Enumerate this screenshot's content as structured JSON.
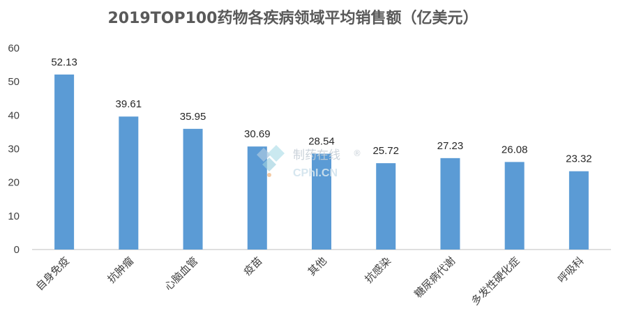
{
  "chart_data": {
    "type": "bar",
    "title": "2019TOP100药物各疾病领域平均销售额（亿美元）",
    "categories": [
      "自身免疫",
      "抗肿瘤",
      "心脑血管",
      "疫苗",
      "其他",
      "抗感染",
      "糖尿病代谢",
      "多发性硬化症",
      "呼吸科"
    ],
    "values": [
      52.13,
      39.61,
      35.95,
      30.69,
      28.54,
      25.72,
      27.23,
      26.08,
      23.32
    ],
    "data_labels": [
      "52.13",
      "39.61",
      "35.95",
      "30.69",
      "28.54",
      "25.72",
      "27.23",
      "26.08",
      "23.32"
    ],
    "ylim": [
      0,
      60
    ],
    "yticks": [
      0,
      10,
      20,
      30,
      40,
      50,
      60
    ],
    "grid": false,
    "bar_color": "#5b9bd5"
  },
  "watermark": {
    "text": "制药在线",
    "mark": "®",
    "sub": "CPhI.CN"
  }
}
